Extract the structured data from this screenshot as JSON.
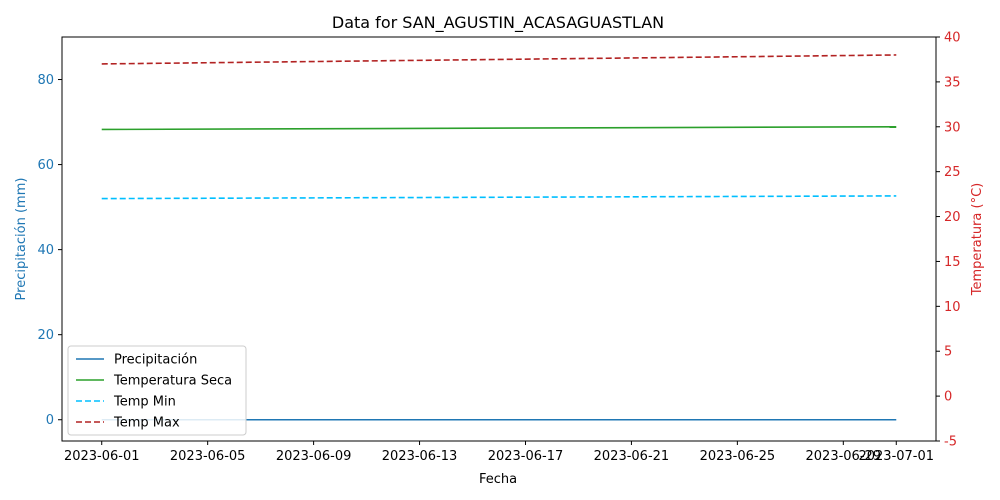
{
  "chart_data": {
    "type": "line",
    "title": "Data for SAN_AGUSTIN_ACASAGUASTLAN",
    "xlabel": "Fecha",
    "ylabel_left": "Precipitación (mm)",
    "ylabel_right": "Temperatura (°C)",
    "x_start": "2023-06-01",
    "x_end": "2023-07-01",
    "x_ticks": [
      "2023-06-01",
      "2023-06-05",
      "2023-06-09",
      "2023-06-13",
      "2023-06-17",
      "2023-06-21",
      "2023-06-25",
      "2023-06-29",
      "2023-07-01"
    ],
    "left_axis": {
      "ylim": [
        -5,
        90
      ],
      "ticks": [
        0,
        20,
        40,
        60,
        80
      ],
      "color": "#1f77b4"
    },
    "right_axis": {
      "ylim": [
        -5,
        40
      ],
      "ticks": [
        -5,
        0,
        5,
        10,
        15,
        20,
        25,
        30,
        35,
        40
      ],
      "color": "#d62728"
    },
    "grid": false,
    "legend_position": "lower-left",
    "series": [
      {
        "name": "Precipitación",
        "axis": "left",
        "color": "#1f77b4",
        "style": "solid",
        "x": [
          "2023-06-01",
          "2023-07-01"
        ],
        "values": [
          0,
          0
        ]
      },
      {
        "name": "Temperatura Seca",
        "axis": "right",
        "color": "#2ca02c",
        "style": "solid",
        "x": [
          "2023-06-01",
          "2023-07-01"
        ],
        "values": [
          29.7,
          30.0
        ]
      },
      {
        "name": "Temp Min",
        "axis": "right",
        "color": "#00bfff",
        "style": "dashed",
        "x": [
          "2023-06-01",
          "2023-07-01"
        ],
        "values": [
          22.0,
          22.3
        ]
      },
      {
        "name": "Temp Max",
        "axis": "right",
        "color": "#b22222",
        "style": "dashed",
        "x": [
          "2023-06-01",
          "2023-07-01"
        ],
        "values": [
          37.0,
          38.0
        ]
      }
    ]
  }
}
